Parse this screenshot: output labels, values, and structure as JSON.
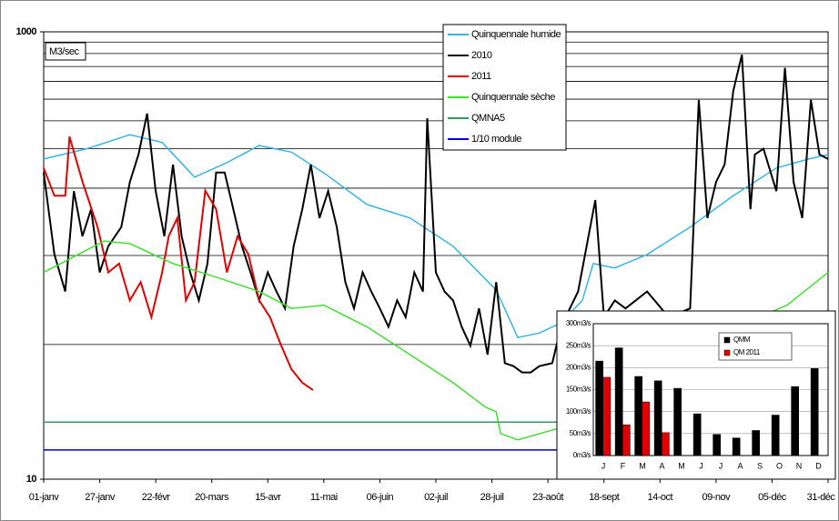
{
  "chart_data": [
    {
      "type": "line",
      "y_label": "M3/sec",
      "log_y": true,
      "xlim": [
        0,
        364
      ],
      "xticks": [
        {
          "value": 0,
          "label": "01-janv"
        },
        {
          "value": 26,
          "label": "27-janv"
        },
        {
          "value": 52,
          "label": "22-févr"
        },
        {
          "value": 78,
          "label": "20-mars"
        },
        {
          "value": 104,
          "label": "15-avr"
        },
        {
          "value": 130,
          "label": "11-mai"
        },
        {
          "value": 156,
          "label": "06-juin"
        },
        {
          "value": 182,
          "label": "02-juil"
        },
        {
          "value": 208,
          "label": "28-juil"
        },
        {
          "value": 234,
          "label": "23-août"
        },
        {
          "value": 260,
          "label": "18-sept"
        },
        {
          "value": 286,
          "label": "14-oct"
        },
        {
          "value": 312,
          "label": "09-nov"
        },
        {
          "value": 338,
          "label": "05-déc"
        },
        {
          "value": 364,
          "label": "31-déc"
        }
      ],
      "ylim": [
        10,
        1000
      ],
      "yticks": [
        10,
        1000
      ],
      "ygrid": [
        40,
        100,
        200,
        300,
        400,
        500,
        600,
        700,
        800,
        900
      ],
      "series": [
        {
          "name": "Quinquennale humide",
          "color": "#3ab4e6",
          "x": [
            0,
            20,
            40,
            55,
            70,
            85,
            100,
            115,
            130,
            150,
            170,
            190,
            210,
            220,
            230,
            240,
            250,
            255,
            265,
            280,
            300,
            320,
            340,
            355,
            364
          ],
          "values": [
            270,
            300,
            347,
            320,
            224,
            260,
            310,
            290,
            234,
            169,
            147,
            110,
            70,
            43,
            45,
            50,
            63,
            92,
            88,
            101,
            134,
            185,
            246,
            270,
            283
          ]
        },
        {
          "name": "2010",
          "color": "#000000",
          "x": [
            0,
            5,
            10,
            14,
            18,
            22,
            26,
            30,
            36,
            40,
            44,
            48,
            52,
            56,
            60,
            64,
            68,
            72,
            76,
            80,
            84,
            88,
            92,
            96,
            100,
            104,
            108,
            112,
            116,
            120,
            124,
            128,
            132,
            136,
            140,
            144,
            148,
            152,
            156,
            160,
            164,
            168,
            172,
            176,
            178,
            182,
            186,
            190,
            194,
            198,
            202,
            206,
            210,
            214,
            218,
            222,
            226,
            230,
            236,
            240,
            248,
            256,
            260,
            265,
            270,
            280,
            290,
            300,
            304,
            308,
            312,
            316,
            320,
            324,
            328,
            330,
            334,
            340,
            344,
            348,
            352,
            356,
            360,
            364
          ],
          "values": [
            235,
            101,
            69,
            194,
            122,
            161,
            84,
            110,
            134,
            213,
            283,
            431,
            194,
            122,
            255,
            122,
            84,
            63,
            92,
            235,
            235,
            161,
            110,
            84,
            63,
            84,
            69,
            58,
            110,
            161,
            255,
            147,
            194,
            134,
            76,
            58,
            84,
            69,
            58,
            48,
            63,
            53,
            84,
            69,
            411,
            84,
            69,
            63,
            48,
            39.5,
            58,
            36,
            76,
            33,
            32,
            30,
            30,
            32,
            33,
            48,
            69,
            177,
            53,
            63,
            58,
            69,
            53,
            58,
            496,
            147,
            213,
            255,
            544,
            790,
            161,
            283,
            300,
            194,
            690,
            213,
            147,
            496,
            283,
            270
          ]
        },
        {
          "name": "2011",
          "color": "#e00000",
          "x": [
            0,
            5,
            10,
            12,
            18,
            25,
            30,
            35,
            40,
            45,
            50,
            55,
            58,
            62,
            66,
            70,
            75,
            80,
            85,
            90,
            95,
            100,
            105,
            110,
            115,
            120,
            125
          ],
          "values": [
            246,
            185,
            185,
            340,
            214,
            134,
            84,
            92,
            63,
            76,
            53,
            84,
            122,
            147,
            63,
            76,
            195,
            161,
            84,
            122,
            101,
            63,
            53,
            40,
            31,
            27,
            25
          ]
        },
        {
          "name": "Quinquennale sèche",
          "color": "#44dd33",
          "x": [
            0,
            28,
            40,
            60,
            80,
            100,
            115,
            130,
            150,
            170,
            190,
            205,
            210,
            212,
            220,
            240,
            260,
            300,
            330,
            345,
            364
          ],
          "values": [
            84,
            116,
            113,
            92,
            80,
            69,
            58,
            60,
            48,
            36,
            27,
            21,
            20,
            16,
            15,
            17,
            19,
            30,
            52,
            60,
            84
          ]
        },
        {
          "name": "QMNA5",
          "color": "#339966",
          "x": [
            0,
            364
          ],
          "values": [
            18,
            18
          ]
        },
        {
          "name": "1/10 module",
          "color": "#0000cc",
          "x": [
            0,
            364
          ],
          "values": [
            13.5,
            13.5
          ]
        }
      ]
    },
    {
      "type": "bar",
      "categories": [
        "J",
        "F",
        "M",
        "A",
        "M",
        "J",
        "J",
        "A",
        "S",
        "O",
        "N",
        "D"
      ],
      "ylim": [
        0,
        300
      ],
      "yticks": [
        {
          "value": 0,
          "label": "0m3/s"
        },
        {
          "value": 50,
          "label": "50m3/s"
        },
        {
          "value": 100,
          "label": "100m3/s"
        },
        {
          "value": 150,
          "label": "150m3/s"
        },
        {
          "value": 200,
          "label": "200m3/s"
        },
        {
          "value": 250,
          "label": "250m3/s"
        },
        {
          "value": 300,
          "label": "300m3/s"
        }
      ],
      "series": [
        {
          "name": "QMM",
          "color": "#000000",
          "values": [
            215,
            245,
            180,
            170,
            153,
            95,
            48,
            40,
            57,
            92,
            157,
            198
          ]
        },
        {
          "name": "QM 2011",
          "color": "#e00000",
          "values": [
            178,
            70,
            122,
            52,
            null,
            null,
            null,
            null,
            null,
            null,
            null,
            null
          ]
        }
      ]
    }
  ]
}
